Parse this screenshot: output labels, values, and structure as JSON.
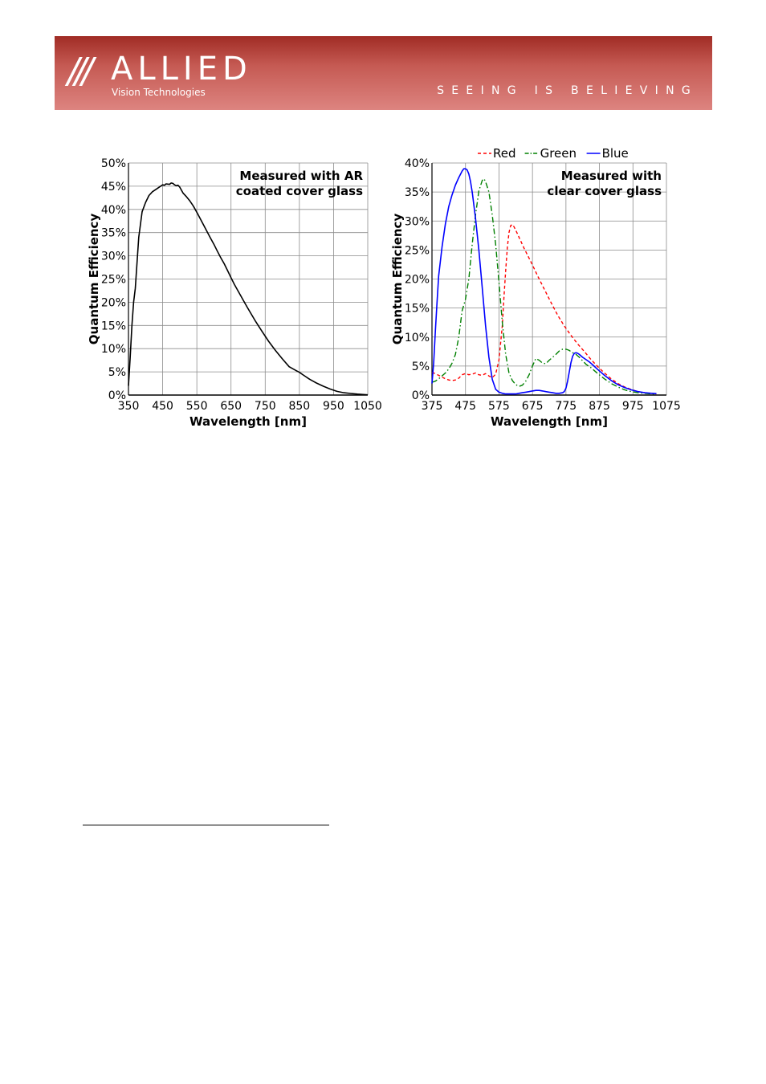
{
  "header": {
    "logo_slashes": "///",
    "logo_word": "ALLIED",
    "logo_sub": "Vision Technologies",
    "tagline": "SEEING IS BELIEVING",
    "color": "#b84a43"
  },
  "chart_data": [
    {
      "type": "line",
      "annotation": [
        "Measured with AR",
        "coated cover glass"
      ],
      "xlabel": "Wavelength [nm]",
      "ylabel": "Quantum Efficiency",
      "xlim": [
        350,
        1050
      ],
      "ylim": [
        0,
        50
      ],
      "xticks": [
        350,
        450,
        550,
        650,
        750,
        850,
        950,
        1050
      ],
      "yticks": [
        0,
        5,
        10,
        15,
        20,
        25,
        30,
        35,
        40,
        45,
        50
      ],
      "ytick_labels": [
        "0%",
        "5%",
        "10%",
        "15%",
        "20%",
        "25%",
        "30%",
        "35%",
        "40%",
        "45%",
        "50%"
      ],
      "grid": true,
      "series": [
        {
          "color": "#000000",
          "style": "solid",
          "x": [
            350,
            355,
            360,
            365,
            370,
            380,
            390,
            400,
            410,
            420,
            430,
            440,
            450,
            455,
            460,
            470,
            475,
            480,
            485,
            490,
            495,
            500,
            510,
            520,
            530,
            540,
            550,
            560,
            570,
            580,
            590,
            600,
            610,
            620,
            630,
            640,
            650,
            660,
            670,
            680,
            690,
            700,
            720,
            740,
            760,
            780,
            800,
            820,
            840,
            850,
            860,
            870,
            880,
            890,
            900,
            920,
            940,
            960,
            980,
            1000,
            1020,
            1040,
            1050
          ],
          "values": [
            2,
            8,
            15,
            20,
            23,
            34,
            39.5,
            41.5,
            43,
            43.8,
            44.3,
            44.8,
            45.3,
            45.2,
            45.5,
            45.4,
            45.7,
            45.6,
            45.3,
            45.1,
            45.2,
            44.8,
            43.5,
            42.7,
            41.8,
            40.7,
            39.4,
            38,
            36.6,
            35.2,
            33.8,
            32.5,
            31,
            29.6,
            28.3,
            26.8,
            25.3,
            23.8,
            22.5,
            21.2,
            19.9,
            18.6,
            16.1,
            13.8,
            11.6,
            9.6,
            7.8,
            6.1,
            5.3,
            4.9,
            4.4,
            3.9,
            3.4,
            3.0,
            2.6,
            1.9,
            1.3,
            0.8,
            0.5,
            0.35,
            0.2,
            0.1,
            0.05
          ]
        }
      ]
    },
    {
      "type": "line",
      "annotation": [
        "Measured with",
        "clear cover glass"
      ],
      "xlabel": "Wavelength [nm]",
      "ylabel": "Quantum Efficiency",
      "xlim": [
        375,
        1075
      ],
      "ylim": [
        0,
        40
      ],
      "xticks": [
        375,
        475,
        575,
        675,
        775,
        875,
        975,
        1075
      ],
      "yticks": [
        0,
        5,
        10,
        15,
        20,
        25,
        30,
        35,
        40
      ],
      "ytick_labels": [
        "0%",
        "5%",
        "10%",
        "15%",
        "20%",
        "25%",
        "30%",
        "35%",
        "40%"
      ],
      "grid": true,
      "legend": "top",
      "series": [
        {
          "name": "Red",
          "color": "#ff0000",
          "style": "dash",
          "x": [
            375,
            385,
            395,
            405,
            415,
            425,
            435,
            445,
            455,
            465,
            475,
            485,
            495,
            505,
            515,
            525,
            535,
            545,
            555,
            565,
            575,
            585,
            590,
            595,
            600,
            605,
            610,
            615,
            620,
            630,
            650,
            670,
            690,
            710,
            730,
            750,
            770,
            790,
            810,
            830,
            850,
            870,
            890,
            910,
            930,
            950,
            970,
            990,
            1010,
            1030,
            1045
          ],
          "values": [
            3.9,
            3.7,
            3.4,
            3.1,
            2.8,
            2.6,
            2.5,
            2.6,
            2.9,
            3.5,
            3.7,
            3.5,
            3.6,
            3.8,
            3.5,
            3.4,
            3.7,
            3.3,
            3.0,
            3.6,
            6.0,
            12,
            17,
            21.5,
            25.5,
            28.0,
            29.2,
            29.4,
            29.0,
            27.8,
            25.3,
            23.0,
            20.6,
            18.3,
            16.0,
            13.8,
            11.9,
            10.3,
            8.8,
            7.5,
            6.1,
            4.9,
            3.8,
            2.8,
            2.0,
            1.4,
            0.95,
            0.6,
            0.4,
            0.3,
            0.2
          ]
        },
        {
          "name": "Green",
          "color": "#008000",
          "style": "dashdot",
          "x": [
            375,
            385,
            395,
            405,
            415,
            425,
            435,
            445,
            455,
            465,
            475,
            485,
            495,
            505,
            515,
            525,
            530,
            535,
            545,
            555,
            565,
            575,
            585,
            595,
            605,
            615,
            625,
            635,
            645,
            655,
            665,
            675,
            685,
            695,
            705,
            715,
            725,
            735,
            745,
            755,
            765,
            775,
            785,
            795,
            805,
            815,
            825,
            835,
            850,
            870,
            890,
            910,
            930,
            950,
            970,
            990,
            1010,
            1030,
            1045
          ],
          "values": [
            2.2,
            2.4,
            2.8,
            3.3,
            3.8,
            4.5,
            5.5,
            7,
            10,
            14.5,
            16.5,
            20,
            26,
            31,
            35.2,
            37.0,
            37.3,
            36.8,
            35.0,
            31.0,
            26.0,
            19.5,
            12.5,
            7.0,
            3.8,
            2.5,
            1.8,
            1.5,
            1.7,
            2.4,
            3.5,
            5.0,
            6.3,
            6.0,
            5.5,
            5.4,
            6.0,
            6.5,
            7.0,
            7.6,
            7.9,
            7.9,
            7.7,
            7.3,
            7.0,
            6.5,
            5.9,
            5.3,
            4.7,
            3.7,
            2.8,
            2.0,
            1.4,
            0.9,
            0.6,
            0.4,
            0.3,
            0.2,
            0.15
          ]
        },
        {
          "name": "Blue",
          "color": "#0000ff",
          "style": "solid",
          "x": [
            375,
            380,
            385,
            390,
            395,
            405,
            415,
            425,
            435,
            445,
            455,
            465,
            470,
            475,
            480,
            485,
            490,
            495,
            505,
            515,
            525,
            535,
            545,
            555,
            565,
            575,
            585,
            595,
            605,
            615,
            625,
            635,
            645,
            655,
            665,
            675,
            685,
            695,
            705,
            715,
            725,
            735,
            745,
            755,
            765,
            770,
            775,
            780,
            785,
            790,
            795,
            800,
            805,
            810,
            815,
            825,
            835,
            845,
            855,
            870,
            890,
            910,
            930,
            950,
            970,
            990,
            1010,
            1030,
            1045
          ],
          "values": [
            2.0,
            5.5,
            11,
            16,
            20.5,
            25.5,
            29.5,
            32.5,
            34.5,
            36.2,
            37.5,
            38.6,
            39.0,
            39.0,
            38.8,
            38.1,
            36.8,
            35.0,
            30.5,
            25.0,
            18.5,
            12.0,
            6.5,
            2.7,
            1.0,
            0.5,
            0.3,
            0.2,
            0.2,
            0.2,
            0.2,
            0.3,
            0.4,
            0.5,
            0.6,
            0.7,
            0.8,
            0.8,
            0.7,
            0.6,
            0.5,
            0.4,
            0.3,
            0.3,
            0.4,
            0.6,
            1.2,
            2.4,
            4.0,
            5.6,
            6.7,
            7.2,
            7.3,
            7.2,
            7.0,
            6.5,
            6.1,
            5.7,
            5.2,
            4.4,
            3.4,
            2.5,
            1.8,
            1.3,
            0.9,
            0.6,
            0.4,
            0.3,
            0.25
          ]
        }
      ]
    }
  ]
}
